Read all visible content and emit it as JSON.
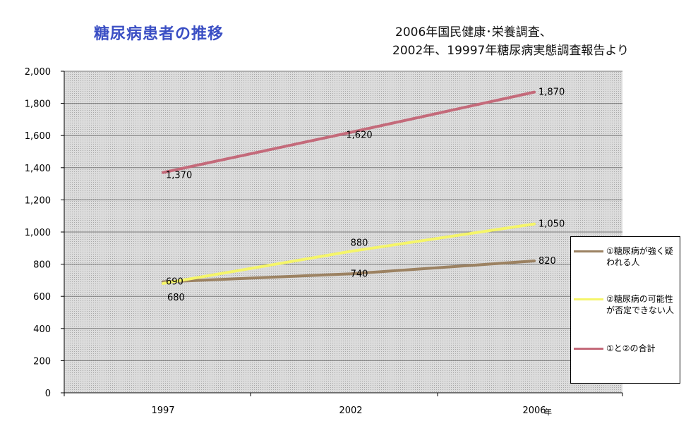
{
  "title": "糖尿病患者の推移",
  "source": {
    "line1": "2006年国民健康･栄養調査、",
    "line2": "2002年、19997年糖尿病実態調査報告より"
  },
  "colors": {
    "plot_bg": "#d4d4d4",
    "grid": "#7a7a7a",
    "title": "#3b4fc4"
  },
  "chart_data": {
    "type": "line",
    "title": "糖尿病患者の推移",
    "x_unit": "年",
    "categories": [
      "1997",
      "2002",
      "2006"
    ],
    "ylim": [
      0,
      2000
    ],
    "yticks": [
      "0",
      "200",
      "400",
      "600",
      "800",
      "1,000",
      "1,200",
      "1,400",
      "1,600",
      "1,800",
      "2,000"
    ],
    "ytick_values": [
      0,
      200,
      400,
      600,
      800,
      1000,
      1200,
      1400,
      1600,
      1800,
      2000
    ],
    "grid": true,
    "legend_position": "right",
    "series": [
      {
        "name": "①糖尿病が強く疑われる人",
        "color": "#9c8262",
        "values": [
          690,
          740,
          820
        ],
        "labels": [
          "690",
          "740",
          "820"
        ]
      },
      {
        "name": "②糖尿病の可能性が否定できない人",
        "color": "#f5f56a",
        "values": [
          680,
          880,
          1050
        ],
        "labels": [
          "680",
          "880",
          "1,050"
        ]
      },
      {
        "name": "①と②の合計",
        "color": "#c46a7a",
        "values": [
          1370,
          1620,
          1870
        ],
        "labels": [
          "1,370",
          "1,620",
          "1,870"
        ]
      }
    ]
  }
}
